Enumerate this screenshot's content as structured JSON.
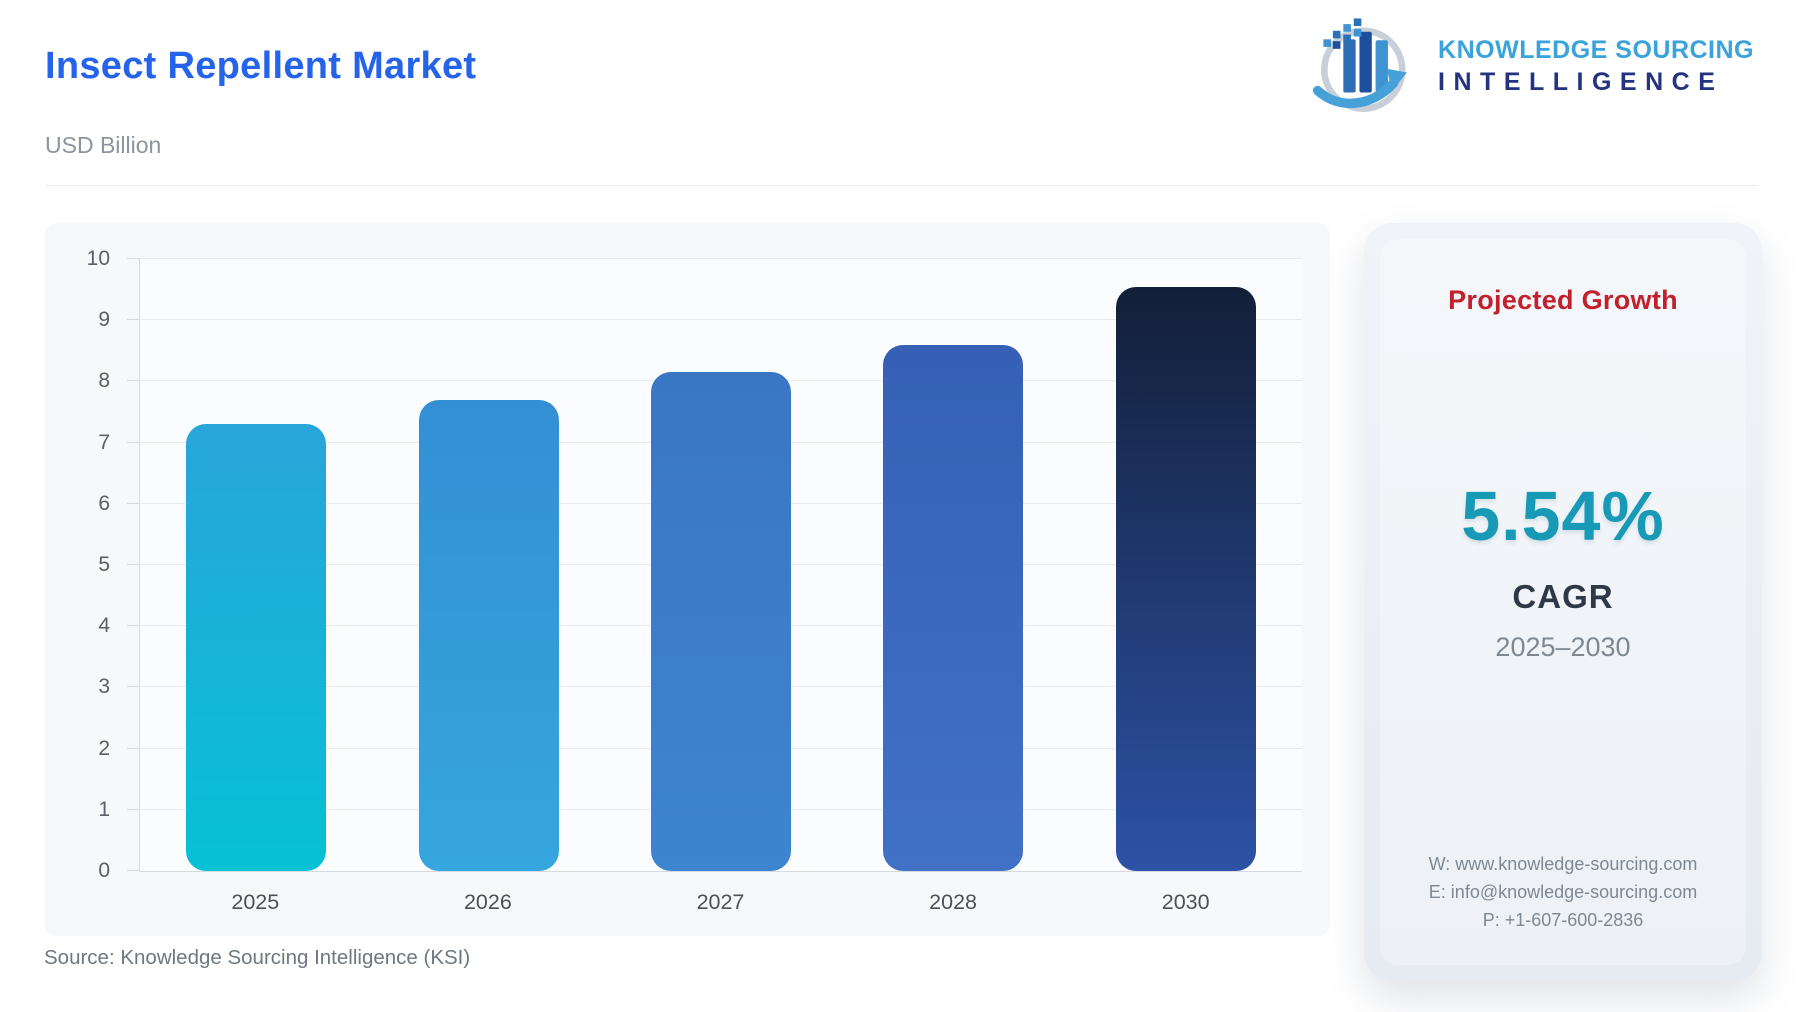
{
  "header": {
    "title": "Insect Repellent Market",
    "subtitle": "USD Billion",
    "title_color": "#2563eb"
  },
  "logo": {
    "icon_name": "growth-bars-globe-arrow-icon",
    "line1": "KNOWLEDGE SOURCING",
    "line2": "INTELLIGENCE",
    "line1_color": "#3aa3dc",
    "line2_color": "#23337f"
  },
  "chart_data": {
    "type": "bar",
    "categories": [
      "2025",
      "2026",
      "2027",
      "2028",
      "2030"
    ],
    "values": [
      7.3,
      7.7,
      8.15,
      8.6,
      9.55
    ],
    "title": "Insect Repellent Market",
    "xlabel": "",
    "ylabel": "USD Billion",
    "ylim": [
      0,
      10
    ],
    "yticks": [
      0,
      1,
      2,
      3,
      4,
      5,
      6,
      7,
      8,
      9,
      10
    ],
    "grid": true,
    "legend": false,
    "bar_gradients": [
      [
        "#28a5d9",
        "#07c1d5"
      ],
      [
        "#338fd4",
        "#36a6de"
      ],
      [
        "#3a76c4",
        "#3d85cf"
      ],
      [
        "#3560b5",
        "#4171c5"
      ],
      [
        "#131f38",
        "#2d52a6"
      ]
    ]
  },
  "panel": {
    "heading": "Projected Growth",
    "heading_color": "#c1202d",
    "value": "5.54%",
    "value_color": "#189ab6",
    "value_label": "CAGR",
    "period": "2025–2030",
    "contact": {
      "website": "W: www.knowledge-sourcing.com",
      "email": "E: info@knowledge-sourcing.com",
      "phone": "P: +1-607-600-2836"
    }
  },
  "footer": {
    "source": "Source: Knowledge Sourcing Intelligence (KSI)"
  }
}
